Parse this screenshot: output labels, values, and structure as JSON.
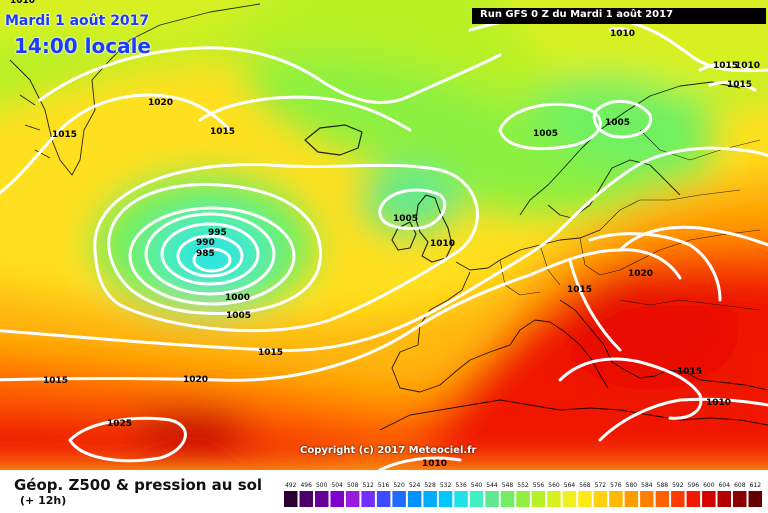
{
  "header": {
    "date": "Mardi 1 août 2017",
    "local_time": "14:00 locale",
    "run_info": "Run GFS 0 Z du Mardi 1 août 2017"
  },
  "map": {
    "copyright": "Copyright (c) 2017 Meteociel.fr",
    "pressure_labels": [
      "1010",
      "1020",
      "1015",
      "1015",
      "1005",
      "1005",
      "1015",
      "1015",
      "1005",
      "995",
      "990",
      "985",
      "1000",
      "1005",
      "1010",
      "1015",
      "1020",
      "1015",
      "1015",
      "1020",
      "1025",
      "1010",
      "1015",
      "1010",
      "1010",
      "1010"
    ]
  },
  "footer": {
    "title": "Géop. Z500 & pression au sol",
    "subtitle": "(+ 12h)"
  },
  "legend": {
    "values": [
      "492",
      "496",
      "500",
      "504",
      "508",
      "512",
      "516",
      "520",
      "524",
      "528",
      "532",
      "536",
      "540",
      "544",
      "548",
      "552",
      "556",
      "560",
      "564",
      "568",
      "572",
      "576",
      "580",
      "584",
      "588",
      "592",
      "596",
      "600",
      "604",
      "608",
      "612"
    ],
    "colors": [
      "#2a0030",
      "#4a0066",
      "#66009a",
      "#8000cc",
      "#9a1ae0",
      "#7030ff",
      "#3c4cff",
      "#1f6cff",
      "#0090ff",
      "#00aaff",
      "#00c8ff",
      "#20e0e8",
      "#40f0c0",
      "#60e890",
      "#70f060",
      "#90f040",
      "#b8f028",
      "#d8f020",
      "#f0f020",
      "#ffe818",
      "#ffd010",
      "#ffb808",
      "#ff9c00",
      "#ff8000",
      "#ff6000",
      "#ff3c00",
      "#f01800",
      "#d40000",
      "#b00000",
      "#8c0000",
      "#660000"
    ]
  },
  "colors": {
    "contour": "#ffffff",
    "coast": "#000000"
  }
}
